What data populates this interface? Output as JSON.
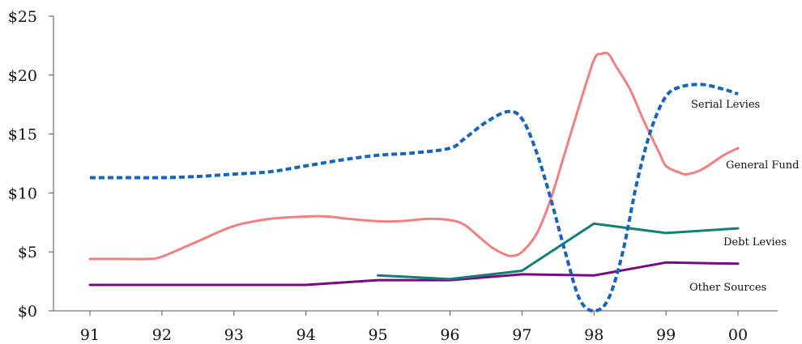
{
  "chart_data": {
    "type": "line",
    "title": "",
    "xlabel": "",
    "ylabel": "",
    "x_ticks": [
      "91",
      "92",
      "93",
      "94",
      "95",
      "96",
      "97",
      "98",
      "99",
      "00"
    ],
    "y_ticks": [
      "$0",
      "$5",
      "$10",
      "$15",
      "$20",
      "$25"
    ],
    "xlim": [
      91,
      100
    ],
    "ylim": [
      0,
      25
    ],
    "grid": false,
    "legend": "inline labels at right end of each line",
    "series": [
      {
        "name": "Serial Levies",
        "color": "#1565c0",
        "dash": "dotted",
        "points": [
          [
            91.0,
            11.3
          ],
          [
            91.5,
            11.3
          ],
          [
            92.0,
            11.3
          ],
          [
            92.5,
            11.4
          ],
          [
            93.0,
            11.6
          ],
          [
            93.5,
            11.8
          ],
          [
            94.0,
            12.3
          ],
          [
            94.5,
            12.8
          ],
          [
            95.0,
            13.2
          ],
          [
            95.5,
            13.4
          ],
          [
            96.0,
            13.8
          ],
          [
            96.2,
            14.6
          ],
          [
            96.5,
            16.0
          ],
          [
            96.8,
            16.9
          ],
          [
            97.0,
            16.3
          ],
          [
            97.2,
            13.5
          ],
          [
            97.4,
            9.5
          ],
          [
            97.6,
            5.0
          ],
          [
            97.8,
            1.0
          ],
          [
            98.0,
            0.0
          ],
          [
            98.2,
            1.0
          ],
          [
            98.4,
            5.0
          ],
          [
            98.6,
            11.0
          ],
          [
            98.8,
            15.5
          ],
          [
            99.0,
            18.2
          ],
          [
            99.2,
            19.0
          ],
          [
            99.5,
            19.2
          ],
          [
            99.8,
            18.8
          ],
          [
            100.0,
            18.4
          ]
        ]
      },
      {
        "name": "General Fund",
        "color": "#f28080",
        "dash": "solid",
        "points": [
          [
            91.0,
            4.4
          ],
          [
            91.5,
            4.4
          ],
          [
            91.8,
            4.4
          ],
          [
            92.0,
            4.6
          ],
          [
            92.5,
            5.9
          ],
          [
            93.0,
            7.2
          ],
          [
            93.5,
            7.8
          ],
          [
            94.0,
            8.0
          ],
          [
            94.3,
            8.0
          ],
          [
            94.6,
            7.8
          ],
          [
            95.0,
            7.6
          ],
          [
            95.3,
            7.6
          ],
          [
            95.7,
            7.8
          ],
          [
            96.0,
            7.7
          ],
          [
            96.2,
            7.3
          ],
          [
            96.4,
            6.3
          ],
          [
            96.6,
            5.3
          ],
          [
            96.8,
            4.7
          ],
          [
            96.9,
            4.7
          ],
          [
            97.0,
            5.0
          ],
          [
            97.2,
            6.5
          ],
          [
            97.4,
            9.5
          ],
          [
            97.6,
            13.5
          ],
          [
            97.8,
            17.5
          ],
          [
            98.0,
            21.3
          ],
          [
            98.1,
            21.8
          ],
          [
            98.2,
            21.8
          ],
          [
            98.3,
            20.8
          ],
          [
            98.5,
            18.8
          ],
          [
            98.7,
            16.0
          ],
          [
            98.9,
            13.5
          ],
          [
            99.0,
            12.3
          ],
          [
            99.2,
            11.7
          ],
          [
            99.3,
            11.6
          ],
          [
            99.5,
            12.0
          ],
          [
            99.8,
            13.2
          ],
          [
            100.0,
            13.8
          ]
        ]
      },
      {
        "name": "Debt Levies",
        "color": "#138078",
        "dash": "solid",
        "points": [
          [
            95.0,
            3.0
          ],
          [
            96.0,
            2.7
          ],
          [
            97.0,
            3.4
          ],
          [
            98.0,
            7.4
          ],
          [
            99.0,
            6.6
          ],
          [
            100.0,
            7.0
          ]
        ]
      },
      {
        "name": "Other Sources",
        "color": "#7b0a82",
        "dash": "solid",
        "points": [
          [
            91.0,
            2.2
          ],
          [
            92.0,
            2.2
          ],
          [
            93.0,
            2.2
          ],
          [
            94.0,
            2.2
          ],
          [
            95.0,
            2.6
          ],
          [
            96.0,
            2.6
          ],
          [
            97.0,
            3.1
          ],
          [
            98.0,
            3.0
          ],
          [
            99.0,
            4.1
          ],
          [
            100.0,
            4.0
          ]
        ]
      }
    ]
  }
}
